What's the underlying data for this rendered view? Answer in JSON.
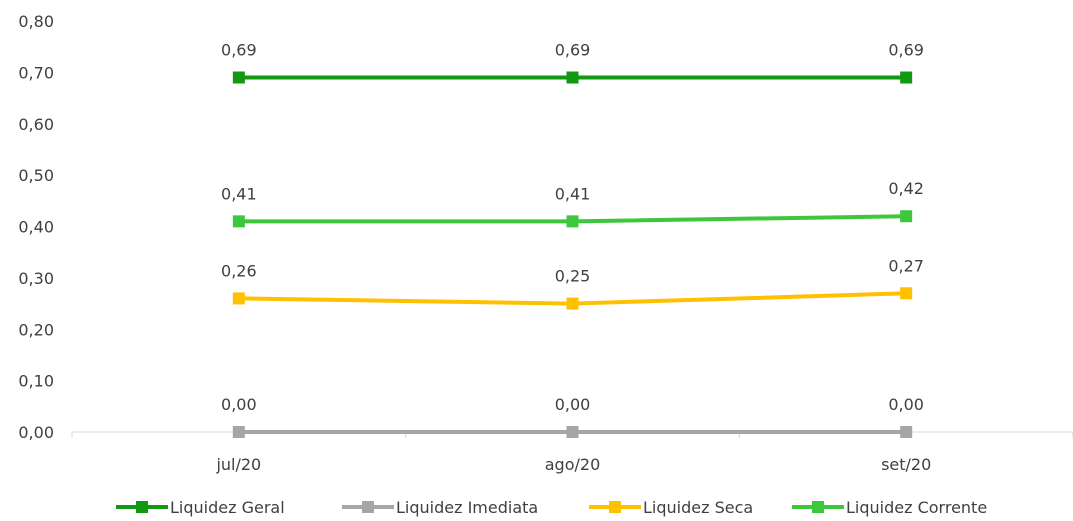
{
  "chart_data": {
    "type": "line",
    "categories": [
      "jul/20",
      "ago/20",
      "set/20"
    ],
    "ylim": [
      0,
      0.8
    ],
    "yticks": [
      "0,00",
      "0,10",
      "0,20",
      "0,30",
      "0,40",
      "0,50",
      "0,60",
      "0,70",
      "0,80"
    ],
    "grid": false,
    "legend_position": "bottom",
    "series": [
      {
        "name": "Liquidez Geral",
        "color": "#119911",
        "values": [
          0.69,
          0.69,
          0.69
        ],
        "labels": [
          "0,69",
          "0,69",
          "0,69"
        ]
      },
      {
        "name": "Liquidez  Imediata",
        "color": "#A6A6A6",
        "values": [
          0.0,
          0.0,
          0.0
        ],
        "labels": [
          "0,00",
          "0,00",
          "0,00"
        ]
      },
      {
        "name": "Liquidez Seca",
        "color": "#FFC000",
        "values": [
          0.26,
          0.25,
          0.27
        ],
        "labels": [
          "0,26",
          "0,25",
          "0,27"
        ]
      },
      {
        "name": "Liquidez Corrente",
        "color": "#3DC73D",
        "values": [
          0.41,
          0.41,
          0.42
        ],
        "labels": [
          "0,41",
          "0,41",
          "0,42"
        ]
      }
    ]
  }
}
